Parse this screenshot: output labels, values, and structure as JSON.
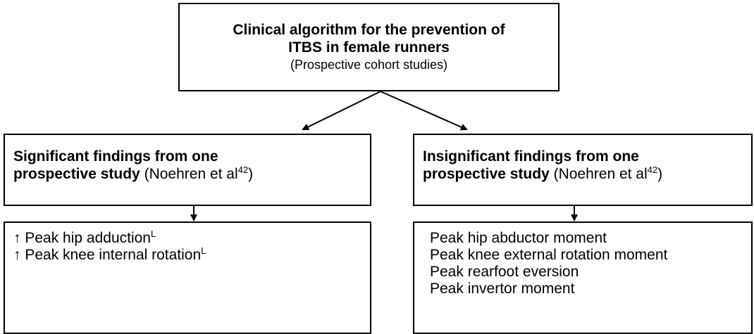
{
  "top": {
    "title_lines": [
      "Clinical algorithm for the prevention of",
      "ITBS in female runners"
    ],
    "subtitle": "(Prospective cohort studies)"
  },
  "left": {
    "heading_lines": [
      "Significant findings from one",
      "prospective study"
    ],
    "citation": "(Noehren et al",
    "citation_sup": "42",
    "citation_close": ")",
    "items": [
      {
        "prefix": "↑",
        "text": "Peak hip adduction",
        "sup": "L"
      },
      {
        "prefix": "↑",
        "text": "Peak knee internal rotation",
        "sup": "L"
      }
    ]
  },
  "right": {
    "heading_lines": [
      "Insignificant findings from one",
      "prospective study"
    ],
    "citation": "(Noehren et al",
    "citation_sup": "42",
    "citation_close": ")",
    "items": [
      "Peak hip abductor moment",
      "Peak knee external rotation moment",
      "Peak rearfoot eversion",
      "Peak invertor moment"
    ]
  }
}
